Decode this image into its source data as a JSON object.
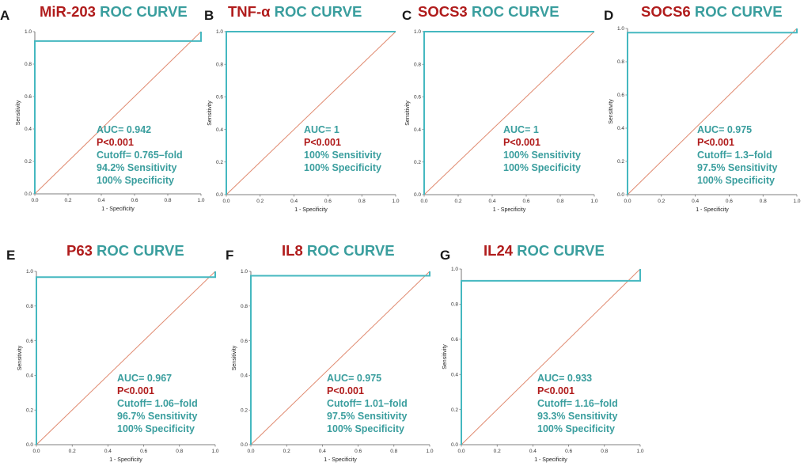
{
  "figure": {
    "title_suffix": "ROC CURVE",
    "xlabel": "1 - Specificity",
    "ylabel": "Sensitivity",
    "ticks": [
      "0.0",
      "0.2",
      "0.4",
      "0.6",
      "0.8",
      "1.0"
    ],
    "colors": {
      "marker_title": "#b01c1c",
      "teal": "#3a9e9e",
      "roc_curve": "#45b8c0",
      "reference_line": "#e08a70",
      "pvalue": "#b01c1c"
    }
  },
  "chart_data": [
    {
      "type": "line",
      "panel": "A",
      "marker": "MiR-203",
      "title": "MiR-203 ROC CURVE",
      "xlabel": "1 - Specificity",
      "ylabel": "Sensitivity",
      "xlim": [
        0,
        1
      ],
      "ylim": [
        0,
        1
      ],
      "series": [
        {
          "name": "ROC",
          "x": [
            0,
            0,
            1,
            1
          ],
          "y": [
            0,
            0.942,
            0.942,
            1
          ]
        },
        {
          "name": "Reference",
          "x": [
            0,
            1
          ],
          "y": [
            0,
            1
          ]
        }
      ],
      "annotations": [
        "AUC= 0.942",
        "P<0.001",
        "Cutoff= 0.765–fold",
        "94.2% Sensitivity",
        "100% Specificity"
      ]
    },
    {
      "type": "line",
      "panel": "B",
      "marker": "TNF-α",
      "title": "TNF-α ROC CURVE",
      "xlabel": "1 - Specificity",
      "ylabel": "Sensitivity",
      "xlim": [
        0,
        1
      ],
      "ylim": [
        0,
        1
      ],
      "series": [
        {
          "name": "ROC",
          "x": [
            0,
            0,
            1
          ],
          "y": [
            0,
            1,
            1
          ]
        },
        {
          "name": "Reference",
          "x": [
            0,
            1
          ],
          "y": [
            0,
            1
          ]
        }
      ],
      "annotations": [
        "AUC= 1",
        "P<0.001",
        "100% Sensitivity",
        "100% Specificity"
      ]
    },
    {
      "type": "line",
      "panel": "C",
      "marker": "SOCS3",
      "title": "SOCS3 ROC CURVE",
      "xlabel": "1 - Specificity",
      "ylabel": "Sensitivity",
      "xlim": [
        0,
        1
      ],
      "ylim": [
        0,
        1
      ],
      "series": [
        {
          "name": "ROC",
          "x": [
            0,
            0,
            1
          ],
          "y": [
            0,
            1,
            1
          ]
        },
        {
          "name": "Reference",
          "x": [
            0,
            1
          ],
          "y": [
            0,
            1
          ]
        }
      ],
      "annotations": [
        "AUC= 1",
        "P<0.001",
        "100% Sensitivity",
        "100% Specificity"
      ]
    },
    {
      "type": "line",
      "panel": "D",
      "marker": "SOCS6",
      "title": "SOCS6 ROC CURVE",
      "xlabel": "1 - Specificity",
      "ylabel": "Sensitivity",
      "xlim": [
        0,
        1
      ],
      "ylim": [
        0,
        1
      ],
      "series": [
        {
          "name": "ROC",
          "x": [
            0,
            0,
            1,
            1
          ],
          "y": [
            0,
            0.975,
            0.975,
            1
          ]
        },
        {
          "name": "Reference",
          "x": [
            0,
            1
          ],
          "y": [
            0,
            1
          ]
        }
      ],
      "annotations": [
        "AUC= 0.975",
        "P<0.001",
        "Cutoff= 1.3–fold",
        "97.5% Sensitivity",
        "100% Specificity"
      ]
    },
    {
      "type": "line",
      "panel": "E",
      "marker": "P63",
      "title": "P63 ROC CURVE",
      "xlabel": "1 - Specificity",
      "ylabel": "Sensitivity",
      "xlim": [
        0,
        1
      ],
      "ylim": [
        0,
        1
      ],
      "series": [
        {
          "name": "ROC",
          "x": [
            0,
            0,
            1,
            1
          ],
          "y": [
            0,
            0.967,
            0.967,
            1
          ]
        },
        {
          "name": "Reference",
          "x": [
            0,
            1
          ],
          "y": [
            0,
            1
          ]
        }
      ],
      "annotations": [
        "AUC= 0.967",
        "P<0.001",
        "Cutoff= 1.06–fold",
        "96.7% Sensitivity",
        "100% Specificity"
      ]
    },
    {
      "type": "line",
      "panel": "F",
      "marker": "IL8",
      "title": "IL8 ROC CURVE",
      "xlabel": "1 - Specificity",
      "ylabel": "Sensitivity",
      "xlim": [
        0,
        1
      ],
      "ylim": [
        0,
        1
      ],
      "series": [
        {
          "name": "ROC",
          "x": [
            0,
            0,
            1,
            1
          ],
          "y": [
            0,
            0.975,
            0.975,
            1
          ]
        },
        {
          "name": "Reference",
          "x": [
            0,
            1
          ],
          "y": [
            0,
            1
          ]
        }
      ],
      "annotations": [
        "AUC= 0.975",
        "P<0.001",
        "Cutoff= 1.01–fold",
        "97.5% Sensitivity",
        "100% Specificity"
      ]
    },
    {
      "type": "line",
      "panel": "G",
      "marker": "IL24",
      "title": "IL24 ROC CURVE",
      "xlabel": "1 - Specificity",
      "ylabel": "Sensitivity",
      "xlim": [
        0,
        1
      ],
      "ylim": [
        0,
        1
      ],
      "series": [
        {
          "name": "ROC",
          "x": [
            0,
            0,
            1,
            1
          ],
          "y": [
            0,
            0.933,
            0.933,
            1
          ]
        },
        {
          "name": "Reference",
          "x": [
            0,
            1
          ],
          "y": [
            0,
            1
          ]
        }
      ],
      "annotations": [
        "AUC= 0.933",
        "P<0.001",
        "Cutoff= 1.16–fold",
        "93.3% Sensitivity",
        "100% Specificity"
      ]
    }
  ]
}
